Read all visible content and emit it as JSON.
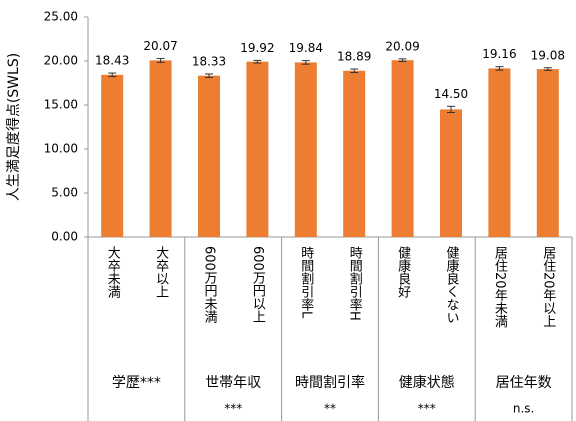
{
  "chart_data": {
    "type": "bar",
    "y_label": "人生満足度得点(SWLS)",
    "categories": [
      "大卒未満",
      "大卒以上",
      "600万円未満",
      "600万円以上",
      "時間割引率L",
      "時間割引率H",
      "健康良好",
      "健康良くない",
      "居住20年未満",
      "居住20年以上"
    ],
    "values": [
      18.43,
      20.07,
      18.33,
      19.92,
      19.84,
      18.89,
      20.09,
      14.5,
      19.16,
      19.08
    ],
    "value_labels": [
      "18.43",
      "20.07",
      "18.33",
      "19.92",
      "19.84",
      "18.89",
      "20.09",
      "14.50",
      "19.16",
      "19.08"
    ],
    "errors": [
      0.2,
      0.22,
      0.2,
      0.15,
      0.2,
      0.2,
      0.15,
      0.35,
      0.2,
      0.15
    ],
    "color": "#ed7d31",
    "groups": [
      {
        "label": "学歴***",
        "size": 2
      },
      {
        "label": "世帯年収",
        "significance": "***",
        "size": 2
      },
      {
        "label": "時間割引率",
        "significance": "**",
        "size": 2
      },
      {
        "label": "健康状態",
        "significance": "***",
        "size": 2
      },
      {
        "label": "居住年数",
        "significance": "n.s.",
        "size": 2
      }
    ],
    "ylim": [
      0,
      25
    ],
    "yticks": [
      {
        "value": 0,
        "label": "0.00"
      },
      {
        "value": 5,
        "label": "5.00"
      },
      {
        "value": 10,
        "label": "10.00"
      },
      {
        "value": 15,
        "label": "15.00"
      },
      {
        "value": 20,
        "label": "20.00"
      },
      {
        "value": 25,
        "label": "25.00"
      }
    ]
  }
}
